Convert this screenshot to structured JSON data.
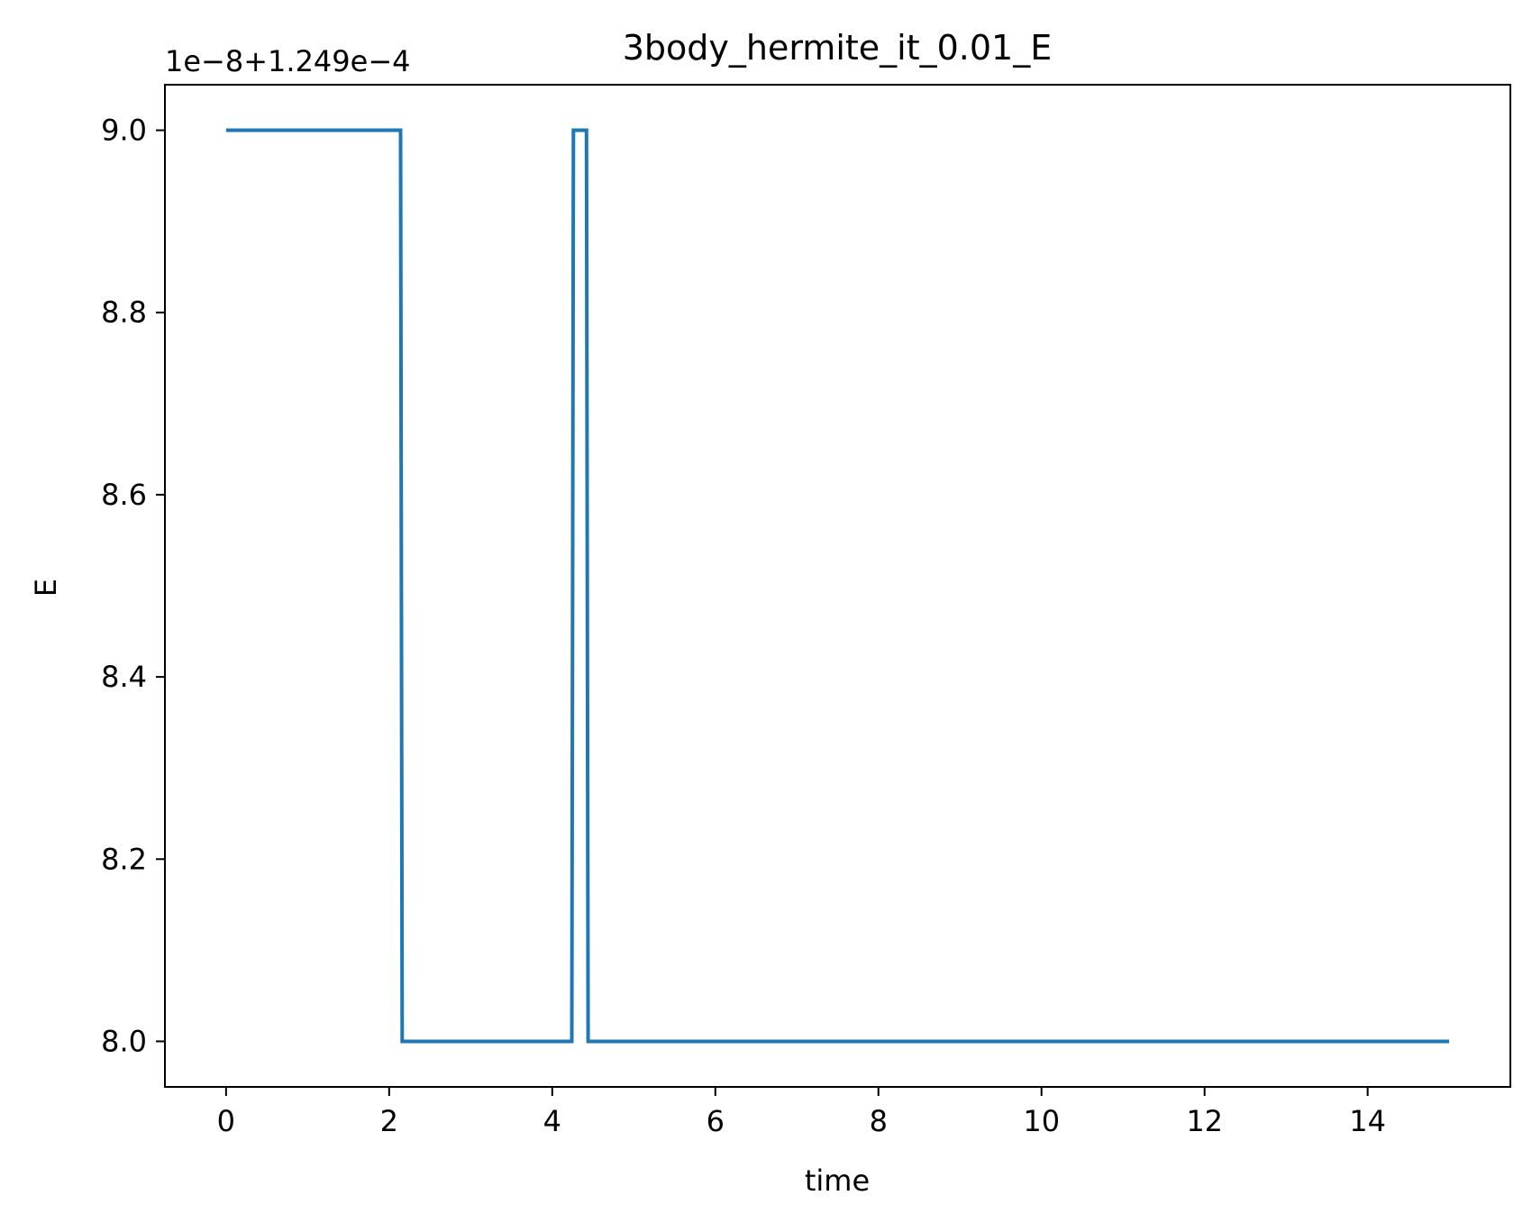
{
  "chart_data": {
    "type": "line",
    "title": "3body_hermite_it_0.01_E",
    "xlabel": "time",
    "ylabel": "E",
    "offset_label": "1e−8+1.249e−4",
    "xlim": [
      -0.75,
      15.75
    ],
    "ylim": [
      7.95,
      9.05
    ],
    "xticks": [
      0,
      2,
      4,
      6,
      8,
      10,
      12,
      14
    ],
    "yticks": [
      8.0,
      8.2,
      8.4,
      8.6,
      8.8,
      9.0
    ],
    "xtick_labels": [
      "0",
      "2",
      "4",
      "6",
      "8",
      "10",
      "12",
      "14"
    ],
    "ytick_labels": [
      "8.0",
      "8.2",
      "8.4",
      "8.6",
      "8.8",
      "9.0"
    ],
    "grid": false,
    "series": [
      {
        "color": "#1f77b4",
        "x": [
          0,
          2.14,
          2.16,
          4.24,
          4.26,
          4.42,
          4.44,
          15.0
        ],
        "y": [
          9.0,
          9.0,
          8.0,
          8.0,
          9.0,
          9.0,
          8.0,
          8.0
        ]
      }
    ]
  }
}
